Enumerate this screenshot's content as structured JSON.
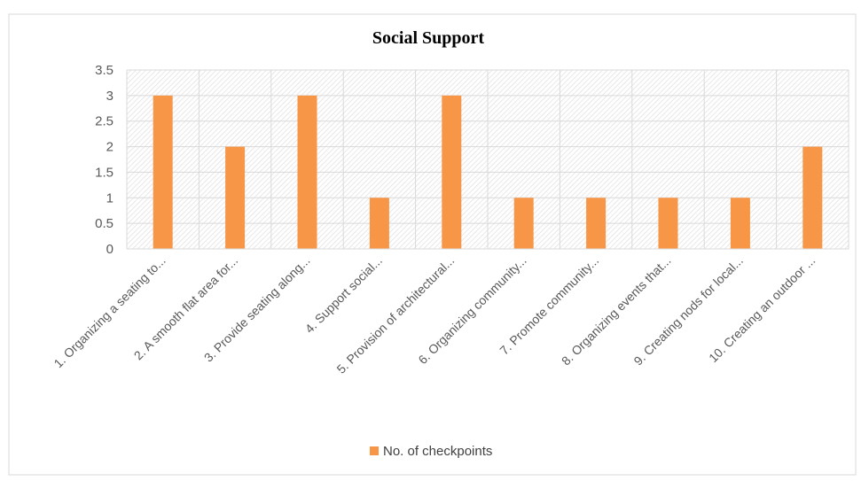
{
  "chart_data": {
    "type": "bar",
    "title": "Social Support",
    "xlabel": "",
    "ylabel": "",
    "ylim": [
      0,
      3.5
    ],
    "yticks": [
      "0",
      "0.5",
      "1",
      "1.5",
      "2",
      "2.5",
      "3",
      "3.5"
    ],
    "categories": [
      "1.   Organizing a seating to...",
      "2.  A smooth flat area for...",
      "3.   Provide seating along...",
      "4.   Support social...",
      "5.   Provision of architectural...",
      "6.  Organizing community...",
      "7.  Promote community...",
      "8.  Organizing events that...",
      "9.  Creating nods for local...",
      "10. Creating an outdoor ..."
    ],
    "series": [
      {
        "name": "No. of checkpoints",
        "values": [
          3,
          2,
          3,
          1,
          3,
          1,
          1,
          1,
          1,
          2
        ],
        "color": "#F79646"
      }
    ],
    "grid": true,
    "plot_background": "hatched",
    "legend_position": "bottom"
  }
}
